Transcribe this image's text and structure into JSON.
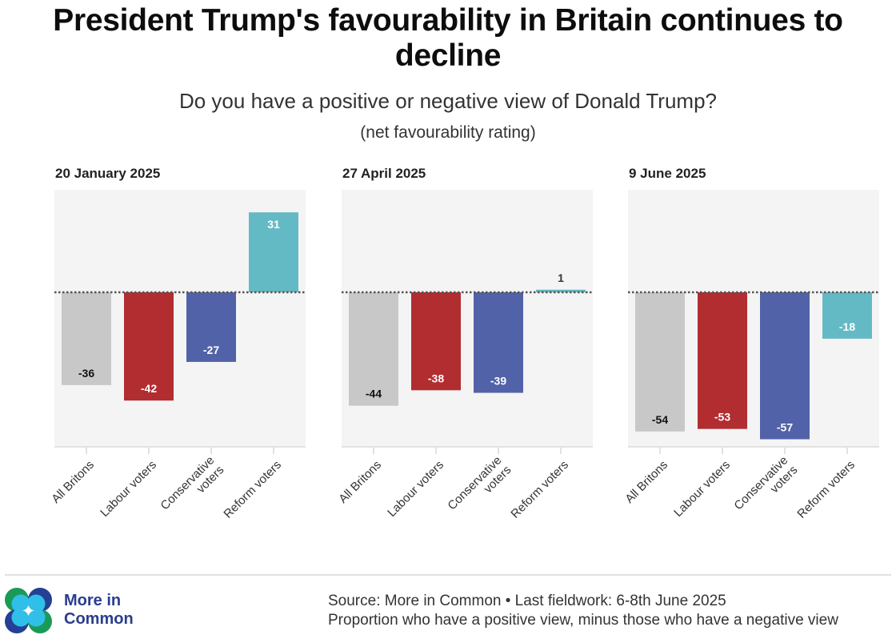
{
  "header": {
    "title_line1": "President Trump's favourability in Britain continues to",
    "title_line2": "decline",
    "subtitle": "Do you have a positive or negative view of Donald Trump?",
    "subsubtitle": "(net favourability rating)"
  },
  "chart_data": {
    "type": "bar",
    "title": "President Trump's favourability in Britain continues to decline",
    "subtitle": "Do you have a positive or negative view of Donald Trump? (net favourability rating)",
    "categories": [
      "All Britons",
      "Labour voters",
      "Conservative voters",
      "Reform voters"
    ],
    "category_label_lines": [
      [
        "All Britons"
      ],
      [
        "Labour voters"
      ],
      [
        "Conservative",
        "voters"
      ],
      [
        "Reform voters"
      ]
    ],
    "colors": [
      "#c8c8c8",
      "#b22d30",
      "#5262a8",
      "#64bac4"
    ],
    "label_colors": [
      "#111111",
      "#ffffff",
      "#ffffff",
      "#ffffff"
    ],
    "ylim": [
      -60,
      40
    ],
    "grid": false,
    "zero_line": "dotted",
    "panels": [
      {
        "title": "20 January 2025",
        "values": [
          -36,
          -42,
          -27,
          31
        ]
      },
      {
        "title": "27 April 2025",
        "values": [
          -44,
          -38,
          -39,
          1
        ]
      },
      {
        "title": "9 June 2025",
        "values": [
          -54,
          -53,
          -57,
          -18
        ]
      }
    ]
  },
  "footer": {
    "brand_line1": "More in",
    "brand_line2": "Common",
    "source_line1": "Source: More in Common • Last fieldwork: 6-8th June 2025",
    "source_line2": "Proportion who have a positive view, minus those who have a negative view",
    "logo_colors": {
      "green": "#1a9a57",
      "navy": "#253f95",
      "cyan": "#2fbfe8"
    }
  }
}
